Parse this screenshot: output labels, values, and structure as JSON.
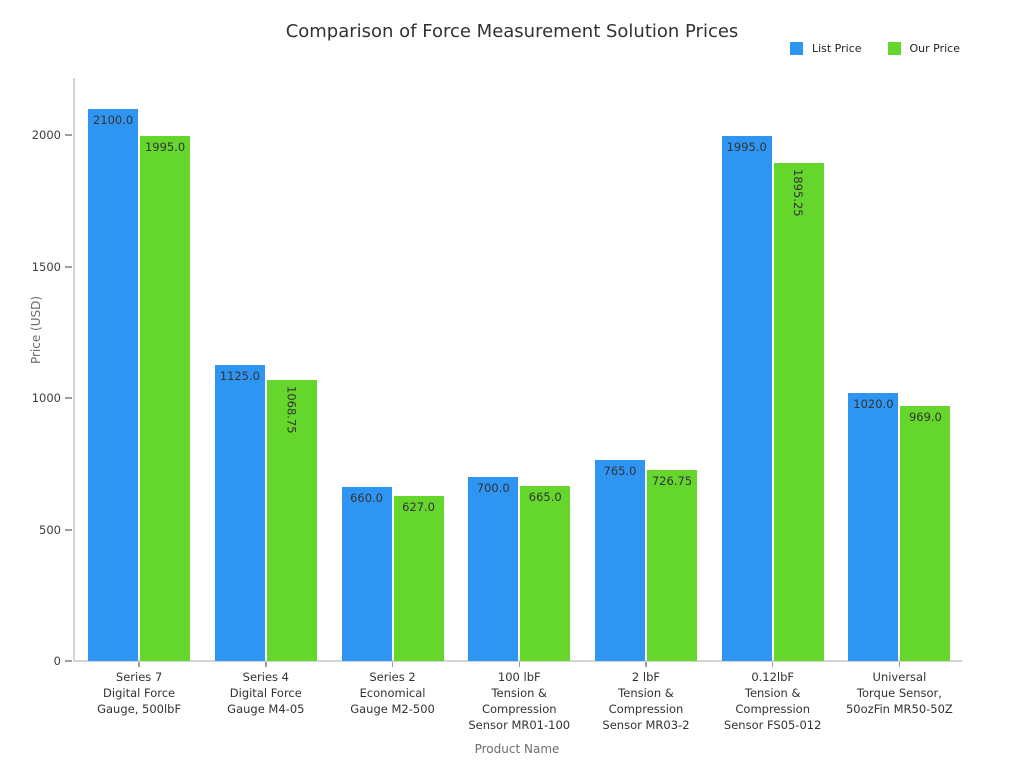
{
  "title": "Comparison of Force Measurement Solution Prices",
  "legend": {
    "items": [
      {
        "label": "List Price",
        "color": "#2F95F3"
      },
      {
        "label": "Our Price",
        "color": "#65D62B"
      }
    ],
    "position": "top-right"
  },
  "chart_data": {
    "type": "bar",
    "title": "Comparison of Force Measurement Solution Prices",
    "xlabel": "Product Name",
    "ylabel": "Price (USD)",
    "ylim": [
      0,
      2217
    ],
    "yticks": [
      0,
      500,
      1000,
      1500,
      2000
    ],
    "grid": false,
    "legend_position": "top-right",
    "categories": [
      [
        "Series 7",
        "Digital Force",
        "Gauge, 500lbF"
      ],
      [
        "Series 4",
        "Digital Force",
        "Gauge M4-05"
      ],
      [
        "Series 2",
        "Economical",
        "Gauge M2-500"
      ],
      [
        "100 lbF",
        "Tension &",
        "Compression",
        "Sensor MR01-100"
      ],
      [
        "2 lbF",
        "Tension &",
        "Compression",
        "Sensor MR03-2"
      ],
      [
        "0.12lbF",
        "Tension &",
        "Compression",
        "Sensor FS05-012"
      ],
      [
        "Universal",
        "Torque Sensor,",
        "50ozFin MR50-50Z"
      ]
    ],
    "series": [
      {
        "name": "List Price",
        "color": "#2F95F3",
        "values": [
          2100.0,
          1125.0,
          660.0,
          700.0,
          765.0,
          1995.0,
          1020.0
        ],
        "labels": [
          "2100.0",
          "1125.0",
          "660.0",
          "700.0",
          "765.0",
          "1995.0",
          "1020.0"
        ]
      },
      {
        "name": "Our Price",
        "color": "#65D62B",
        "values": [
          1995.0,
          1068.75,
          627.0,
          665.0,
          726.75,
          1895.25,
          969.0
        ],
        "labels": [
          "1995.0",
          "1068.75",
          "627.0",
          "665.0",
          "726.75",
          "1895.25",
          "969.0"
        ]
      }
    ]
  }
}
